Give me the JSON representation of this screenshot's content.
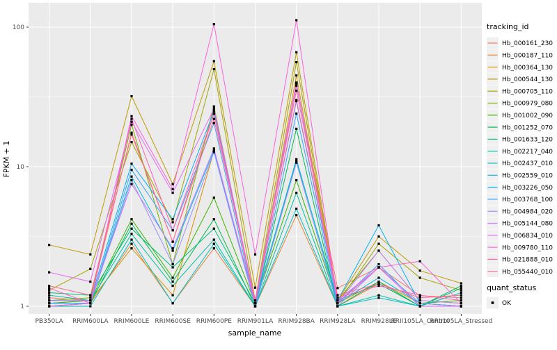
{
  "figure": {
    "background": "#FFFFFF",
    "panel_background": "#EBEBEB",
    "gridline_color": "#FFFFFF",
    "tick_color": "#333333",
    "axis_text_color": "#4D4D4D",
    "point_color": "#000000",
    "legend": {
      "tracking_title": "tracking_id",
      "quant_title": "quant_status",
      "quant_items": [
        {
          "label": "OK",
          "marker": "black-square"
        }
      ],
      "key_background": "#F0F0F0"
    }
  },
  "chart_data": {
    "type": "line",
    "title": "",
    "xlabel": "sample_name",
    "ylabel": "FPKM + 1",
    "yscale": "log10",
    "ylim": [
      0.88,
      145
    ],
    "y_major_ticks": [
      1,
      10,
      100
    ],
    "y_tick_labels": [
      "1",
      "10",
      "100"
    ],
    "y_minor_ticks": [
      3.162,
      31.62
    ],
    "grid": true,
    "legend_position": "right",
    "marker": "black-square",
    "categories": [
      "PB350LA",
      "RRIM600LA",
      "RRIM600LE",
      "RRIM600SE",
      "RRIM600PE",
      "RRIM901LA",
      "RRIM928BA",
      "RRIM928LA",
      "RRIM928LE",
      "RRII105LA_Control",
      "RRII105LA_Stressed"
    ],
    "series": [
      {
        "name": "Hb_000161_230",
        "color": "#F8766D",
        "values": [
          1.15,
          1.1,
          17.5,
          2.9,
          24.0,
          1.05,
          38.0,
          1.35,
          1.9,
          1.19,
          1.15
        ]
      },
      {
        "name": "Hb_000187_110",
        "color": "#EA8331",
        "values": [
          1.0,
          1.05,
          2.8,
          1.05,
          2.6,
          1.0,
          4.5,
          1.0,
          1.45,
          1.0,
          1.0
        ]
      },
      {
        "name": "Hb_000364_130",
        "color": "#D89000",
        "values": [
          1.05,
          1.1,
          2.6,
          1.2,
          13.0,
          1.05,
          45.0,
          1.05,
          1.5,
          1.05,
          1.0
        ]
      },
      {
        "name": "Hb_000544_130",
        "color": "#C09B00",
        "values": [
          2.75,
          2.35,
          32.0,
          7.5,
          57.0,
          1.36,
          66.0,
          1.1,
          3.16,
          1.8,
          1.46
        ]
      },
      {
        "name": "Hb_000705_110",
        "color": "#A3A500",
        "values": [
          1.3,
          1.85,
          15.0,
          4.0,
          50.0,
          1.1,
          56.0,
          1.05,
          2.8,
          1.6,
          1.3
        ]
      },
      {
        "name": "Hb_000979_080",
        "color": "#7CAE00",
        "values": [
          1.1,
          1.15,
          20.0,
          2.0,
          27.0,
          1.05,
          40.0,
          1.1,
          2.5,
          1.1,
          1.05
        ]
      },
      {
        "name": "Hb_001002_090",
        "color": "#39B600",
        "values": [
          1.05,
          1.1,
          4.2,
          1.6,
          6.0,
          1.05,
          8.0,
          1.05,
          1.9,
          1.05,
          1.1
        ]
      },
      {
        "name": "Hb_001252_070",
        "color": "#00BB4E",
        "values": [
          1.0,
          1.05,
          3.9,
          1.5,
          4.2,
          1.0,
          18.7,
          1.0,
          1.5,
          1.0,
          1.4
        ]
      },
      {
        "name": "Hb_001633_120",
        "color": "#00BF7D",
        "values": [
          1.25,
          1.2,
          3.6,
          1.9,
          3.6,
          1.05,
          11.0,
          1.1,
          1.45,
          1.0,
          1.35
        ]
      },
      {
        "name": "Hb_002217_040",
        "color": "#00C1A3",
        "values": [
          1.2,
          1.1,
          3.3,
          1.4,
          3.0,
          1.0,
          6.5,
          1.0,
          1.2,
          1.0,
          1.25
        ]
      },
      {
        "name": "Hb_002437_010",
        "color": "#00BFC4",
        "values": [
          1.0,
          1.0,
          3.0,
          1.05,
          2.8,
          1.0,
          5.0,
          1.0,
          1.15,
          1.0,
          1.0
        ]
      },
      {
        "name": "Hb_002559_010",
        "color": "#00BAE0",
        "values": [
          1.05,
          1.05,
          8.5,
          2.5,
          13.0,
          1.05,
          11.3,
          1.05,
          1.6,
          1.05,
          1.0
        ]
      },
      {
        "name": "Hb_003226_050",
        "color": "#00B0F6",
        "values": [
          1.1,
          1.1,
          10.5,
          4.2,
          25.0,
          1.05,
          29.5,
          1.1,
          3.8,
          1.05,
          1.0
        ]
      },
      {
        "name": "Hb_003768_100",
        "color": "#35A2FF",
        "values": [
          1.05,
          1.05,
          9.5,
          3.5,
          20.5,
          1.0,
          24.0,
          1.05,
          2.0,
          1.0,
          1.0
        ]
      },
      {
        "name": "Hb_004984_020",
        "color": "#9590FF",
        "values": [
          1.0,
          1.05,
          8.0,
          2.0,
          12.7,
          1.0,
          10.7,
          1.0,
          1.9,
          1.05,
          1.0
        ]
      },
      {
        "name": "Hb_005144_080",
        "color": "#C77CFF",
        "values": [
          1.1,
          1.1,
          7.5,
          2.6,
          13.5,
          1.05,
          39.0,
          1.05,
          2.5,
          1.1,
          1.05
        ]
      },
      {
        "name": "Hb_006834_010",
        "color": "#E76BF3",
        "values": [
          1.75,
          1.5,
          21.0,
          6.5,
          26.0,
          1.1,
          40.0,
          1.1,
          1.9,
          1.0,
          1.0
        ]
      },
      {
        "name": "Hb_009780_110",
        "color": "#FA62DB",
        "values": [
          1.0,
          1.05,
          23.0,
          6.9,
          105.0,
          2.35,
          112.0,
          1.05,
          1.9,
          2.1,
          1.05
        ]
      },
      {
        "name": "Hb_021888_010",
        "color": "#FF62BC",
        "values": [
          1.35,
          1.05,
          22.0,
          3.5,
          24.0,
          1.05,
          30.0,
          1.15,
          1.4,
          1.2,
          1.1
        ]
      },
      {
        "name": "Hb_055440_010",
        "color": "#FF6A98",
        "values": [
          1.4,
          1.2,
          17.0,
          2.9,
          22.0,
          1.1,
          35.0,
          1.2,
          1.45,
          1.15,
          1.2
        ]
      }
    ]
  }
}
